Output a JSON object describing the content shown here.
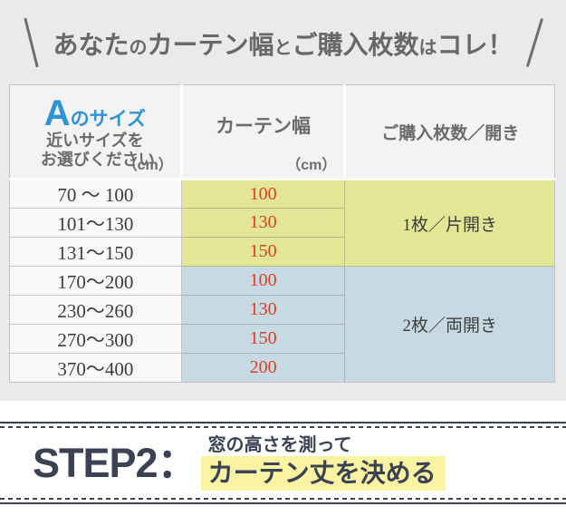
{
  "title": {
    "p1": "あなた",
    "p2": "の",
    "p3": "カーテン幅",
    "p4": "と",
    "p5": "ご購入枚数",
    "p6": "は",
    "p7": "コレ！"
  },
  "table": {
    "header": {
      "col1": {
        "big": "A",
        "small": "のサイズ",
        "line2": "近いサイズを",
        "line3": "お選びください",
        "unit": "（cm）"
      },
      "col2": {
        "label": "カーテン幅",
        "unit": "（cm）"
      },
      "col3": {
        "label": "ご購入枚数／開き"
      }
    },
    "rows": [
      {
        "range": "70 〜 100",
        "width": "100"
      },
      {
        "range": "101〜130",
        "width": "130"
      },
      {
        "range": "131〜150",
        "width": "150"
      },
      {
        "range": "170〜200",
        "width": "100"
      },
      {
        "range": "230〜260",
        "width": "130"
      },
      {
        "range": "270〜300",
        "width": "150"
      },
      {
        "range": "370〜400",
        "width": "200"
      }
    ],
    "groups": [
      {
        "label": "1枚／片開き",
        "row_span": 3
      },
      {
        "label": "2枚／両開き",
        "row_span": 4
      }
    ]
  },
  "step": {
    "label": "STEP2：",
    "line1": "窓の高さを測って",
    "line2": "カーテン丈を決める"
  },
  "colors": {
    "accent_blue": "#2f93d8",
    "group1_yellow_green": "#e3e694",
    "group2_light_blue": "#c7d9e2",
    "width_value_red": "#e8381f",
    "step_navy": "#3b4254",
    "highlight_yellow": "#faf3a2",
    "page_gray": "#eaeaea"
  }
}
